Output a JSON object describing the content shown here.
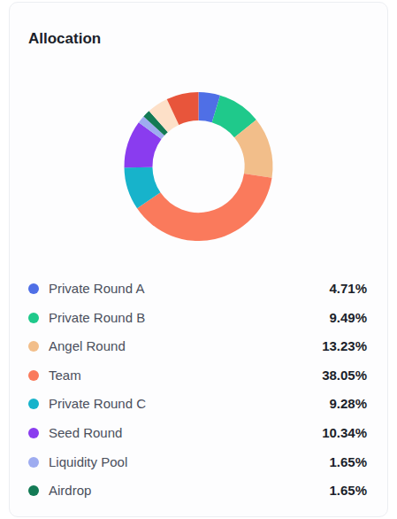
{
  "chart_data": {
    "type": "pie",
    "title": "Allocation",
    "categories": [
      "Private Round A",
      "Private Round B",
      "Angel Round",
      "Team",
      "Private Round C",
      "Seed Round",
      "Liquidity Pool",
      "Airdrop",
      null,
      null
    ],
    "values": [
      4.71,
      9.49,
      13.23,
      38.05,
      9.28,
      10.34,
      1.65,
      1.65,
      4.6,
      7.0
    ],
    "value_labels": [
      "4.71%",
      "9.49%",
      "13.23%",
      "38.05%",
      "9.28%",
      "10.34%",
      "1.65%",
      "1.65%",
      null,
      null
    ],
    "colors": [
      "#4f6fe6",
      "#1fc98b",
      "#f2be8a",
      "#fa7a5c",
      "#17b3cb",
      "#8a3cef",
      "#9eacf0",
      "#137a55",
      "#fde0c8",
      "#e8553b"
    ]
  }
}
